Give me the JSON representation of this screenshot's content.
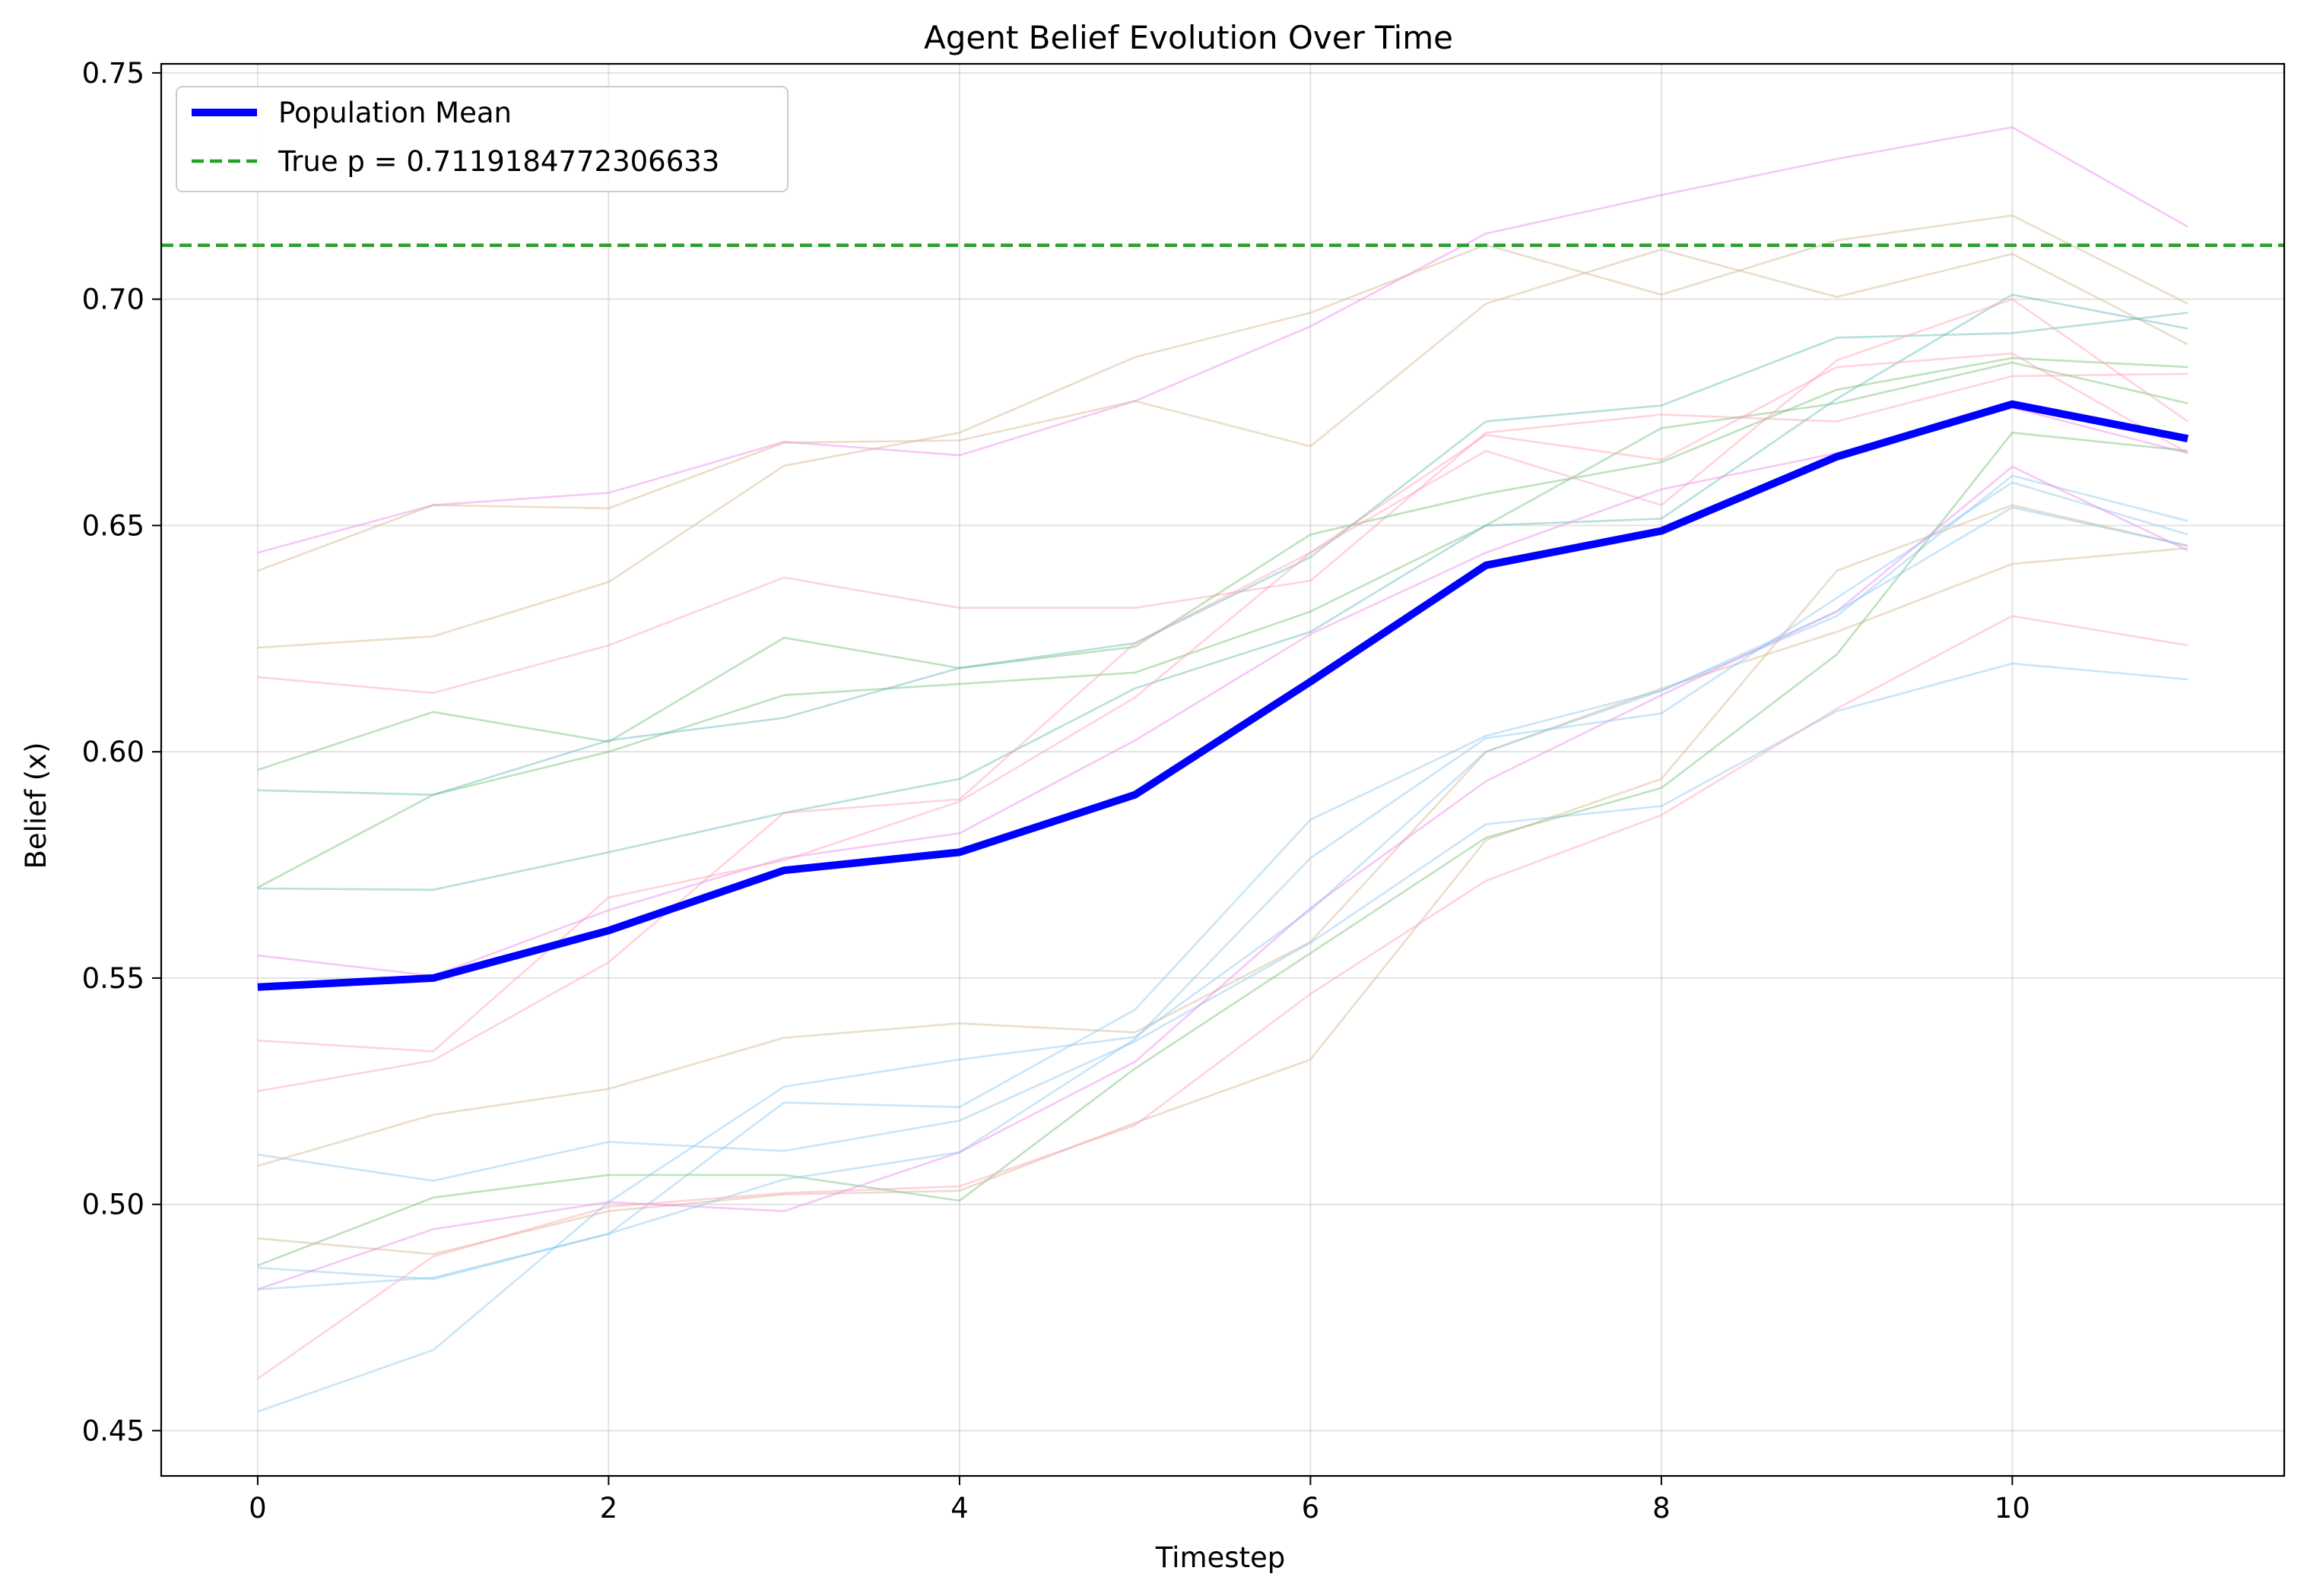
{
  "chart_data": {
    "type": "line",
    "title": "Agent Belief Evolution Over Time",
    "xlabel": "Timestep",
    "ylabel": "Belief (x)",
    "xlim": [
      -0.55,
      11.55
    ],
    "ylim": [
      0.44,
      0.752
    ],
    "xticks": [
      0,
      2,
      4,
      6,
      8,
      10
    ],
    "yticks": [
      0.45,
      0.5,
      0.55,
      0.6,
      0.65,
      0.7,
      0.75
    ],
    "ytick_labels": [
      "0.45",
      "0.50",
      "0.55",
      "0.60",
      "0.65",
      "0.70",
      "0.75"
    ],
    "grid": true,
    "legend_position": "top-left",
    "x": [
      0,
      1,
      2,
      3,
      4,
      5,
      6,
      7,
      8,
      9,
      10,
      11
    ],
    "mean_series": {
      "name": "Population Mean",
      "color": "#0000ff",
      "values": [
        0.548,
        0.55,
        0.5605,
        0.5738,
        0.5778,
        0.5905,
        0.6155,
        0.6412,
        0.6488,
        0.6652,
        0.6768,
        0.6692
      ]
    },
    "reference_line": {
      "label": "True p = 0.7119184772306633",
      "value": 0.7119184772306633,
      "color": "#2ca02c"
    },
    "agent_series": [
      {
        "color": "#ee82ee",
        "values": [
          0.644,
          0.6545,
          0.6572,
          0.6685,
          0.6655,
          0.6775,
          0.694,
          0.7145,
          0.723,
          0.731,
          0.738,
          0.716
        ]
      },
      {
        "color": "#d2b48c",
        "values": [
          0.64,
          0.6545,
          0.6538,
          0.6683,
          0.6688,
          0.6775,
          0.6675,
          0.699,
          0.711,
          0.7005,
          0.71,
          0.69
        ]
      },
      {
        "color": "#d2b48c",
        "values": [
          0.623,
          0.6255,
          0.6375,
          0.6632,
          0.6705,
          0.6872,
          0.697,
          0.712,
          0.701,
          0.713,
          0.7185,
          0.699
        ]
      },
      {
        "color": "#ff9eb5",
        "values": [
          0.6165,
          0.613,
          0.6235,
          0.6385,
          0.6318,
          0.6318,
          0.6378,
          0.6705,
          0.6745,
          0.673,
          0.683,
          0.6835
        ]
      },
      {
        "color": "#6fbf6f",
        "values": [
          0.596,
          0.6088,
          0.6022,
          0.6252,
          0.6185,
          0.6232,
          0.648,
          0.657,
          0.664,
          0.68,
          0.687,
          0.685
        ]
      },
      {
        "color": "#6fbf6f",
        "values": [
          0.57,
          0.5905,
          0.6,
          0.6125,
          0.615,
          0.6175,
          0.631,
          0.65,
          0.6715,
          0.677,
          0.686,
          0.677
        ]
      },
      {
        "color": "#5fb8bb",
        "values": [
          0.5915,
          0.5905,
          0.6025,
          0.6075,
          0.6185,
          0.624,
          0.643,
          0.673,
          0.6765,
          0.6915,
          0.6925,
          0.697
        ]
      },
      {
        "color": "#5fb8bb",
        "values": [
          0.5698,
          0.5695,
          0.5778,
          0.5865,
          0.594,
          0.614,
          0.6265,
          0.65,
          0.6515,
          0.678,
          0.701,
          0.6935
        ]
      },
      {
        "color": "#ee82ee",
        "values": [
          0.555,
          0.5505,
          0.565,
          0.5765,
          0.582,
          0.6025,
          0.626,
          0.644,
          0.658,
          0.666,
          0.676,
          0.666
        ]
      },
      {
        "color": "#ff9eb5",
        "values": [
          0.5362,
          0.5338,
          0.5678,
          0.576,
          0.589,
          0.612,
          0.644,
          0.6665,
          0.6545,
          0.6865,
          0.7,
          0.673
        ]
      },
      {
        "color": "#ff9eb5",
        "values": [
          0.525,
          0.5318,
          0.5535,
          0.5865,
          0.5895,
          0.624,
          0.644,
          0.67,
          0.6645,
          0.685,
          0.688,
          0.666
        ]
      },
      {
        "color": "#d2b48c",
        "values": [
          0.5085,
          0.5198,
          0.5255,
          0.5368,
          0.54,
          0.538,
          0.558,
          0.6,
          0.614,
          0.6265,
          0.6415,
          0.645
        ]
      },
      {
        "color": "#87c5f0",
        "values": [
          0.511,
          0.5052,
          0.5138,
          0.5118,
          0.5185,
          0.536,
          0.5578,
          0.584,
          0.588,
          0.609,
          0.6195,
          0.616
        ]
      },
      {
        "color": "#87c5f0",
        "values": [
          0.486,
          0.4835,
          0.4935,
          0.5225,
          0.5215,
          0.543,
          0.585,
          0.6035,
          0.6135,
          0.63,
          0.661,
          0.651
        ]
      },
      {
        "color": "#6fbf6f",
        "values": [
          0.4865,
          0.5015,
          0.5065,
          0.5065,
          0.5008,
          0.53,
          0.5555,
          0.581,
          0.592,
          0.6215,
          0.6705,
          0.6665
        ]
      },
      {
        "color": "#d2b48c",
        "values": [
          0.4925,
          0.489,
          0.4985,
          0.5022,
          0.503,
          0.518,
          0.532,
          0.5805,
          0.594,
          0.64,
          0.6545,
          0.6455
        ]
      },
      {
        "color": "#ee82ee",
        "values": [
          0.4812,
          0.4945,
          0.5005,
          0.4985,
          0.5115,
          0.5315,
          0.5655,
          0.5935,
          0.6125,
          0.631,
          0.663,
          0.6445
        ]
      },
      {
        "color": "#87c5f0",
        "values": [
          0.4812,
          0.4838,
          0.4935,
          0.5055,
          0.5115,
          0.5365,
          0.5765,
          0.603,
          0.6085,
          0.634,
          0.6595,
          0.648
        ]
      },
      {
        "color": "#ff9eb5",
        "values": [
          0.4615,
          0.4885,
          0.4995,
          0.5025,
          0.504,
          0.5175,
          0.5465,
          0.5715,
          0.586,
          0.6095,
          0.63,
          0.6235
        ]
      },
      {
        "color": "#87c5f0",
        "values": [
          0.4542,
          0.4678,
          0.5005,
          0.526,
          0.532,
          0.537,
          0.565,
          0.6,
          0.6135,
          0.631,
          0.654,
          0.6455
        ]
      }
    ]
  }
}
